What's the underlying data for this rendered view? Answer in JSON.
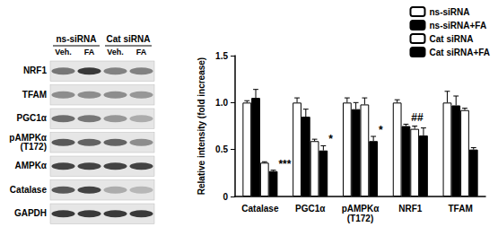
{
  "chart_data": {
    "type": "bar",
    "y_label": "Relative intensity (fold increase)",
    "categories": [
      "Catalase",
      "PGC1α",
      "pAMPKα\n(T172)",
      "NRF1",
      "TFAM"
    ],
    "series": [
      {
        "name": "ns-siRNA",
        "color": "#ffffff",
        "values": [
          1.0,
          1.0,
          1.0,
          1.0,
          1.0
        ],
        "errors": [
          0.02,
          0.05,
          0.05,
          0.03,
          0.12
        ]
      },
      {
        "name": "ns-siRNA+FA",
        "color": "#000000",
        "values": [
          1.05,
          0.85,
          0.93,
          0.75,
          0.97
        ],
        "errors": [
          0.09,
          0.08,
          0.07,
          0.02,
          0.1
        ]
      },
      {
        "name": "Cat siRNA",
        "color": "#ffffff",
        "values": [
          0.36,
          0.59,
          0.98,
          0.72,
          0.92
        ],
        "errors": [
          0.01,
          0.02,
          0.07,
          0.03,
          0.02
        ]
      },
      {
        "name": "Cat siRNA+FA",
        "color": "#000000",
        "values": [
          0.27,
          0.49,
          0.59,
          0.65,
          0.5
        ],
        "errors": [
          0.01,
          0.05,
          0.05,
          0.08,
          0.02
        ]
      }
    ],
    "annotations": [
      {
        "text": "***",
        "category": "Catalase",
        "series": "Cat siRNA+FA"
      },
      {
        "text": "*",
        "category": "PGC1α",
        "series": "Cat siRNA+FA"
      },
      {
        "text": "*",
        "category": "pAMPKα\n(T172)",
        "series": "Cat siRNA+FA"
      },
      {
        "text": "##",
        "category": "NRF1",
        "series": "ns-siRNA+FA"
      }
    ],
    "ylim": [
      0,
      1.5
    ],
    "yticks": [
      0,
      0.5,
      {
        "value": 1,
        "label": "1.0"
      },
      1.5
    ],
    "grid": false,
    "legend": "top-right"
  },
  "blot": {
    "groups": [
      {
        "label": "ns-siRNA",
        "lanes": [
          "Veh.",
          "FA"
        ]
      },
      {
        "label": "Cat siRNA",
        "lanes": [
          "Veh.",
          "FA"
        ]
      }
    ],
    "rows": [
      "NRF1",
      "TFAM",
      "PGC1α",
      "pAMPKα\n(T172)",
      "AMPKα",
      "Catalase",
      "GAPDH"
    ]
  }
}
